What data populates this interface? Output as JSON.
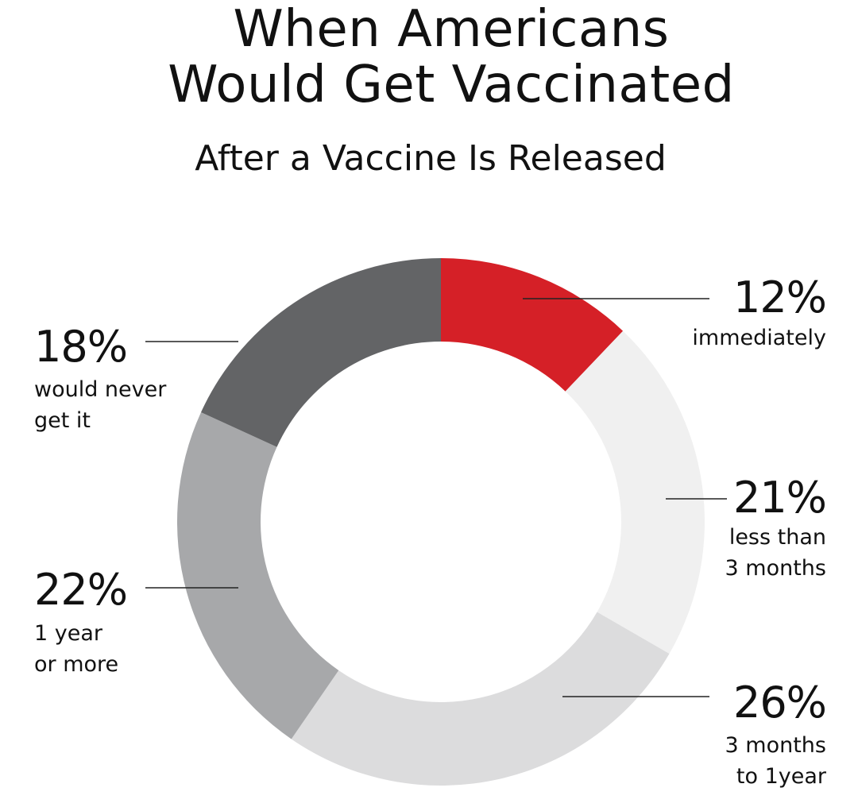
{
  "chart_data": {
    "type": "donut",
    "title": "When Americans\nWould Get Vaccinated",
    "subtitle": "After a Vaccine Is Released",
    "categories": [
      "immediately",
      "less than\n3 months",
      "3 months\nto 1year",
      "1 year\nor more",
      "would never\nget it"
    ],
    "values": [
      12,
      21,
      26,
      22,
      18
    ],
    "value_labels": [
      "12%",
      "21%",
      "26%",
      "22%",
      "18%"
    ],
    "colors": [
      "#d52027",
      "#f0f0f0",
      "#dcdcdd",
      "#a7a8aa",
      "#636466"
    ]
  }
}
